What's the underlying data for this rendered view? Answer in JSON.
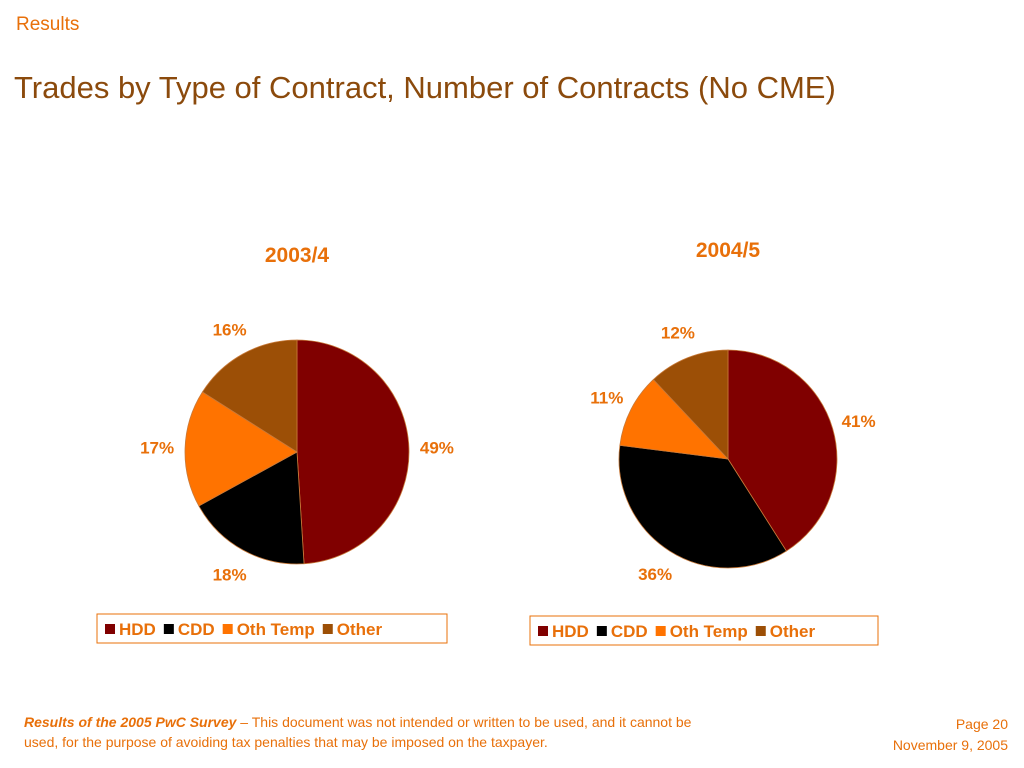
{
  "header": {
    "section": "Results",
    "title": "Trades by Type of Contract, Number of Contracts (No CME)"
  },
  "chart_data": [
    {
      "type": "pie",
      "title": "2003/4",
      "categories": [
        "HDD",
        "CDD",
        "Oth Temp",
        "Other"
      ],
      "values": [
        49,
        18,
        17,
        16
      ],
      "labels": [
        "49%",
        "18%",
        "17%",
        "16%"
      ],
      "colors": [
        "#800000",
        "#000000",
        "#ff7300",
        "#9c4f06"
      ],
      "legend": "bottom"
    },
    {
      "type": "pie",
      "title": "2004/5",
      "categories": [
        "HDD",
        "CDD",
        "Oth Temp",
        "Other"
      ],
      "values": [
        41,
        36,
        11,
        12
      ],
      "labels": [
        "41%",
        "36%",
        "11%",
        "12%"
      ],
      "colors": [
        "#800000",
        "#000000",
        "#ff7300",
        "#9c4f06"
      ],
      "legend": "bottom"
    }
  ],
  "footer": {
    "source_italic": "Results of the 2005 PwC Survey",
    "disclaimer": " – This document was not intended or written to be used, and it cannot be used, for the purpose of avoiding tax penalties that may be imposed on the taxpayer.",
    "page": "Page 20",
    "date": "November 9, 2005"
  }
}
